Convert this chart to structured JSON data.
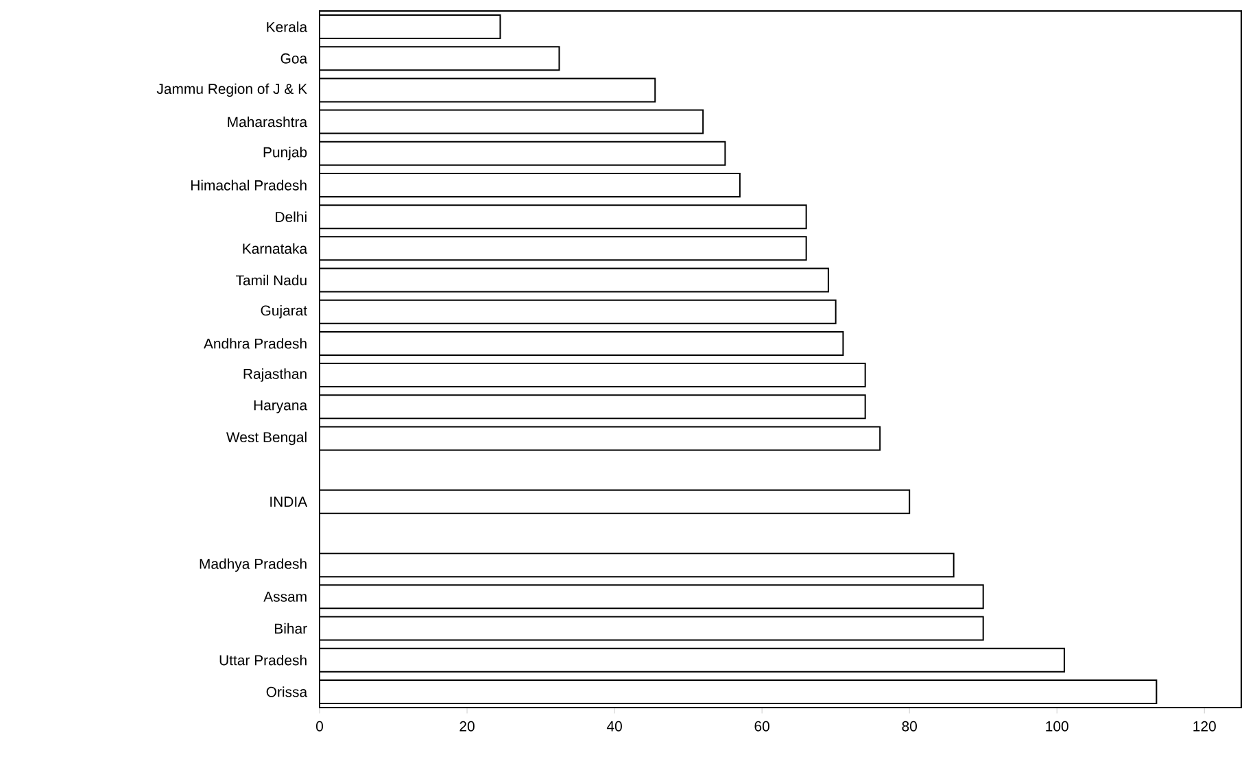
{
  "chart_data": {
    "type": "bar",
    "orientation": "horizontal",
    "categories": [
      "Kerala",
      "Goa",
      "Jammu Region of J & K",
      "Maharashtra",
      "Punjab",
      "Himachal Pradesh",
      "Delhi",
      "Karnataka",
      "Tamil Nadu",
      "Gujarat",
      "Andhra Pradesh",
      "Rajasthan",
      "Haryana",
      "West Bengal",
      null,
      "INDIA",
      null,
      "Madhya Pradesh",
      "Assam",
      "Bihar",
      "Uttar Pradesh",
      "Orissa"
    ],
    "values": [
      24.5,
      32.5,
      45.5,
      52,
      55,
      57,
      66,
      66,
      69,
      70,
      71,
      74,
      74,
      76,
      null,
      80,
      null,
      86,
      90,
      90,
      101,
      113.5
    ],
    "color": "#ffffff",
    "xlim": [
      0,
      125
    ],
    "xticks": [
      0,
      20,
      40,
      60,
      80,
      100,
      120
    ]
  }
}
